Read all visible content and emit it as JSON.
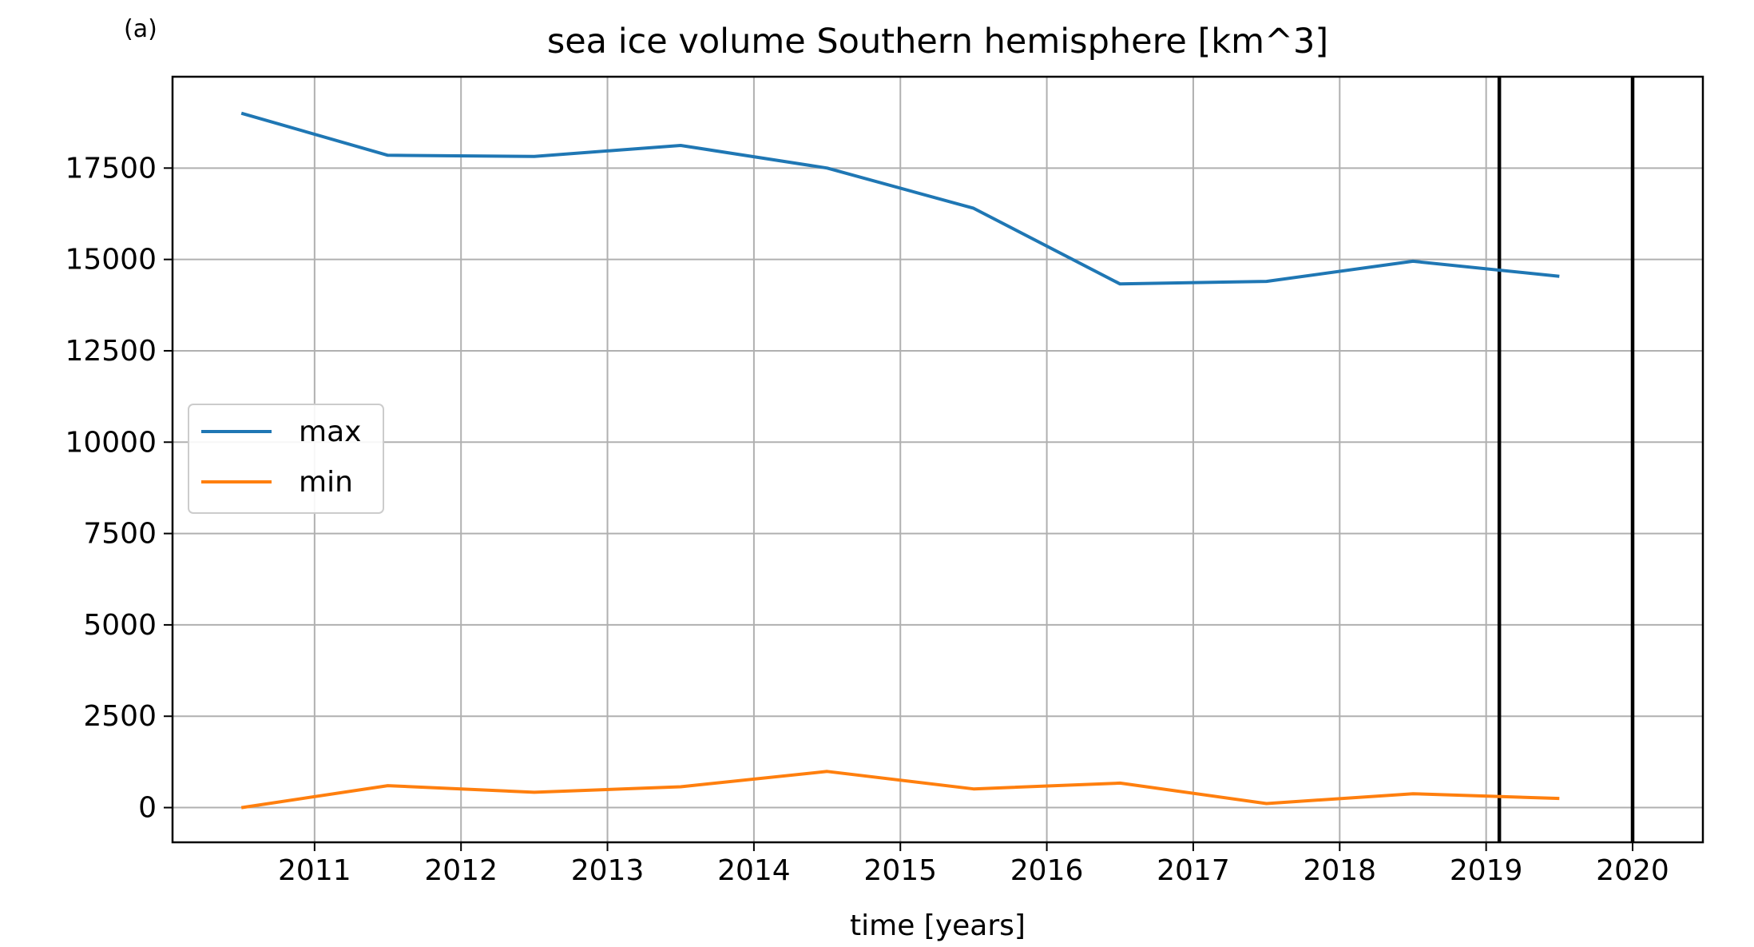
{
  "panel_label": "(a)",
  "chart_data": {
    "type": "line",
    "title": "sea ice volume Southern hemisphere [km^3]",
    "xlabel": "time [years]",
    "ylabel": "",
    "x": [
      2010.5,
      2011.5,
      2012.5,
      2013.5,
      2014.5,
      2015.5,
      2016.5,
      2017.5,
      2018.5,
      2019.5
    ],
    "series": [
      {
        "name": "max",
        "color": "#1f77b4",
        "values": [
          19000,
          17850,
          17820,
          18120,
          17500,
          16400,
          14330,
          14400,
          14950,
          14540
        ]
      },
      {
        "name": "min",
        "color": "#ff7f0e",
        "values": [
          0,
          600,
          420,
          570,
          990,
          510,
          670,
          110,
          380,
          250
        ]
      }
    ],
    "xlim": [
      2010.03,
      2020.48
    ],
    "ylim": [
      -950,
      20000
    ],
    "xticks": [
      2011,
      2012,
      2013,
      2014,
      2015,
      2016,
      2017,
      2018,
      2019,
      2020
    ],
    "xtick_labels": [
      "2011",
      "2012",
      "2013",
      "2014",
      "2015",
      "2016",
      "2017",
      "2018",
      "2019",
      "2020"
    ],
    "yticks": [
      0,
      2500,
      5000,
      7500,
      10000,
      12500,
      15000,
      17500
    ],
    "ytick_labels": [
      "0",
      "2500",
      "5000",
      "7500",
      "10000",
      "12500",
      "15000",
      "17500"
    ],
    "vertical_lines": [
      2019.09,
      2020.0
    ],
    "vertical_line_color": "#000000",
    "grid": true,
    "grid_color": "#b0b0b0",
    "legend_position": "center-left"
  }
}
